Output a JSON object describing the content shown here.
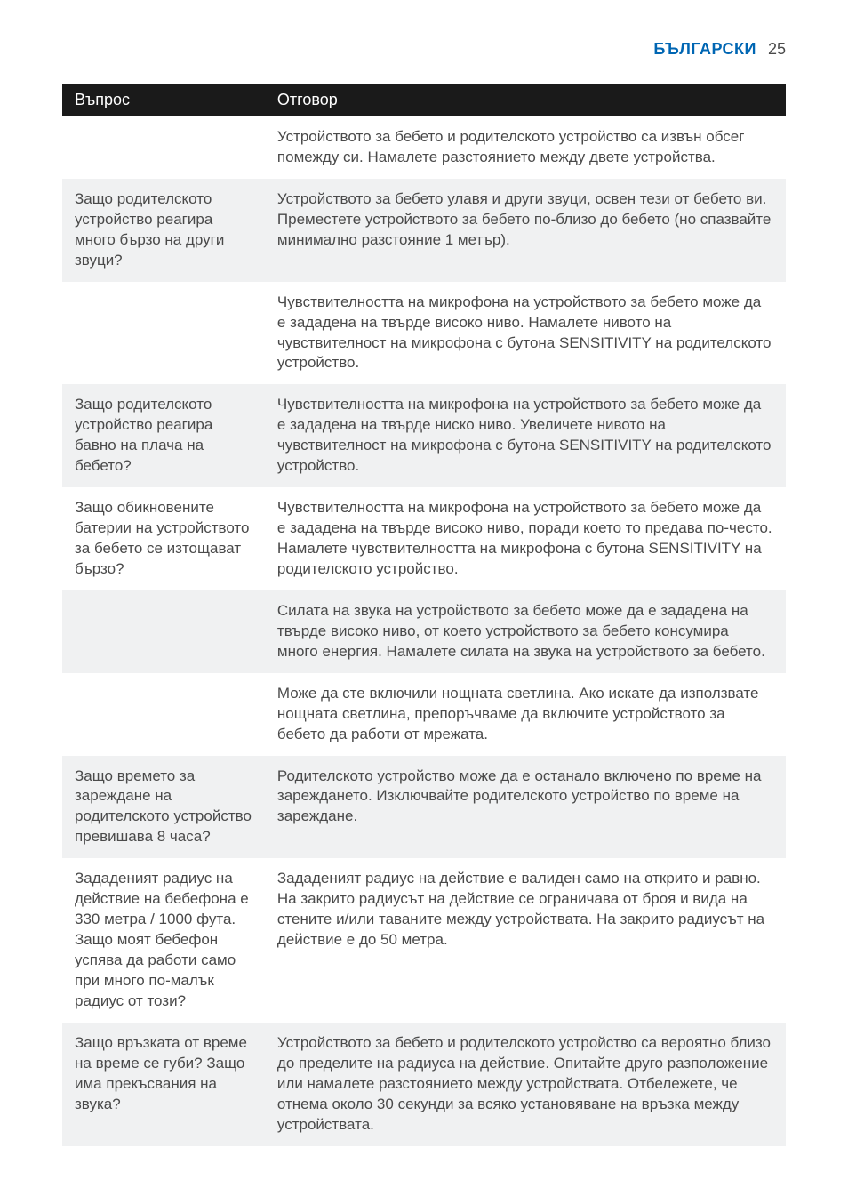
{
  "header": {
    "language": "БЪЛГАРСКИ",
    "page_number": "25"
  },
  "table": {
    "headers": {
      "question": "Въпрос",
      "answer": "Отговор"
    },
    "rows": [
      {
        "shaded": false,
        "question": "",
        "answer": "Устройството за бебето и родителското устройство са извън обсег помежду си. Намалете разстоянието между двете устройства."
      },
      {
        "shaded": true,
        "question": "Защо родителското устройство реагира много бързо на други звуци?",
        "answer": "Устройството за бебето улавя и други звуци, освен тези от бебето ви. Преместете устройството за бебето по-близо до бебето (но спазвайте минимално разстояние 1 метър)."
      },
      {
        "shaded": false,
        "question": "",
        "answer": "Чувствителността на микрофона на устройството за бебето може да е зададена на твърде високо ниво. Намалете нивото на чувствителност на микрофона с бутона SENSITIVITY на родителското устройство."
      },
      {
        "shaded": true,
        "question": "Защо родителското устройство реагира бавно на плача на бебето?",
        "answer": "Чувствителността на микрофона на устройството за бебето може да е зададена на твърде ниско ниво. Увеличете нивото на чувствителност на микрофона с бутона SENSITIVITY на родителското устройство."
      },
      {
        "shaded": false,
        "question": "Защо обикновените батерии на устройството за бебето се изтощават бързо?",
        "answer": "Чувствителността на микрофона на устройството за бебето може да е зададена на твърде високо ниво, поради което то предава по-често. Намалете чувствителността на микрофона с бутона SENSITIVITY на родителското устройство."
      },
      {
        "shaded": true,
        "question": "",
        "answer": "Силата на звука на устройството за бебето може да е зададена на твърде високо ниво, от което устройството за бебето консумира много енергия. Намалете силата на звука на устройството за бебето."
      },
      {
        "shaded": false,
        "question": "",
        "answer": "Може да сте включили нощната светлина. Ако искате да използвате нощната светлина, препоръчваме да включите устройството за бебето да работи от мрежата."
      },
      {
        "shaded": true,
        "question": "Защо времето за зареждане на родителското устройство превишава 8 часа?",
        "answer": "Родителското устройство може да е останало включено по време на зареждането. Изключвайте родителското устройство по време на зареждане."
      },
      {
        "shaded": false,
        "question": "Зададеният радиус на действие на бебефона е 330 метра / 1000 фута. Защо моят бебефон успява да работи само при много по-малък радиус от този?",
        "answer": "Зададеният радиус на действие е валиден само на открито и равно. На закрито радиусът на действие се ограничава от броя и вида на стените и/или таваните между устройствата. На закрито радиусът на действие е до 50 метра."
      },
      {
        "shaded": true,
        "question": "Защо връзката от време на време се губи? Защо има прекъсвания на звука?",
        "answer": "Устройството за бебето и родителското устройство са вероятно близо до пределите на радиуса на действие. Опитайте друго разположение или намалете разстоянието между устройствата. Отбележете, че отнема около 30 секунди за всяко установяване на връзка между устройствата."
      }
    ]
  }
}
